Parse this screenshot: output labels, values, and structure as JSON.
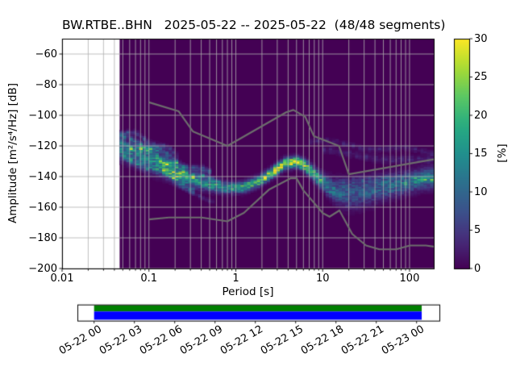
{
  "title": "BW.RTBE..BHN   2025-05-22 -- 2025-05-22  (48/48 segments)",
  "axes": {
    "xlabel": "Period [s]",
    "ylabel": "Amplitude [m²/s⁴/Hz] [dB]",
    "x_ticks": [
      {
        "label": "0.01",
        "value": 0.01
      },
      {
        "label": "0.1",
        "value": 0.1
      },
      {
        "label": "1",
        "value": 1
      },
      {
        "label": "10",
        "value": 10
      },
      {
        "label": "100",
        "value": 100
      }
    ],
    "y_ticks": [
      {
        "label": "−60",
        "value": -60
      },
      {
        "label": "−80",
        "value": -80
      },
      {
        "label": "−100",
        "value": -100
      },
      {
        "label": "−120",
        "value": -120
      },
      {
        "label": "−140",
        "value": -140
      },
      {
        "label": "−160",
        "value": -160
      },
      {
        "label": "−180",
        "value": -180
      },
      {
        "label": "−200",
        "value": -200
      }
    ]
  },
  "colorbar": {
    "label": "[%]",
    "min": 0,
    "max": 30,
    "colormap": "viridis",
    "ticks": [
      {
        "label": "0",
        "value": 0
      },
      {
        "label": "5",
        "value": 5
      },
      {
        "label": "10",
        "value": 10
      },
      {
        "label": "15",
        "value": 15
      },
      {
        "label": "20",
        "value": 20
      },
      {
        "label": "25",
        "value": 25
      },
      {
        "label": "30",
        "value": 30
      }
    ]
  },
  "timeline": {
    "axis_hours": [
      -1.25,
      25.7
    ],
    "tick_hours": [
      0,
      3,
      6,
      9,
      12,
      15,
      18,
      21,
      24
    ],
    "tick_labels": [
      "05-22 00",
      "05-22 03",
      "05-22 06",
      "05-22 09",
      "05-22 12",
      "05-22 15",
      "05-22 18",
      "05-22 21",
      "05-23 00"
    ],
    "bar_hours": [
      0,
      24.38
    ],
    "extent_color": "#008000",
    "coverage_color": "#0000ff"
  },
  "chart_data": {
    "type": "heatmap",
    "title": "BW.RTBE..BHN   2025-05-22 -- 2025-05-22  (48/48 segments)",
    "xlabel": "Period [s]",
    "ylabel": "Amplitude [m²/s⁴/Hz] [dB]",
    "x_scale": "log",
    "xlim": [
      0.01,
      190
    ],
    "ylim": [
      -200,
      -50
    ],
    "grid": true,
    "grid_color": "#b0b0b0",
    "background_color": "#440154",
    "data_start_period_s": 0.046,
    "period_step_octaves": 0.125,
    "db_bin_width": 1,
    "colorbar_label": "[%]",
    "colorbar_range": [
      0,
      30
    ],
    "mode_ridge": [
      [
        0.046,
        -122.5,
        13,
        4.0
      ],
      [
        0.07,
        -125,
        12,
        4.5
      ],
      [
        0.1,
        -128.5,
        13,
        5.0
      ],
      [
        0.14,
        -132,
        15,
        4.5
      ],
      [
        0.2,
        -137.5,
        24,
        3.5
      ],
      [
        0.3,
        -142,
        15,
        3.0
      ],
      [
        0.5,
        -145.5,
        15,
        2.6
      ],
      [
        0.8,
        -147.3,
        17,
        2.2
      ],
      [
        1.2,
        -147.0,
        19,
        2.2
      ],
      [
        1.8,
        -143.5,
        23,
        2.2
      ],
      [
        2.6,
        -137.5,
        27,
        2.2
      ],
      [
        3.6,
        -131.8,
        30,
        2.2
      ],
      [
        5.0,
        -130.2,
        30,
        2.2
      ],
      [
        6.5,
        -133.5,
        26,
        2.4
      ],
      [
        8.0,
        -138.5,
        21,
        2.8
      ],
      [
        10.0,
        -143.5,
        16,
        3.2
      ],
      [
        13.0,
        -148.5,
        12,
        4.2
      ],
      [
        18.0,
        -151.5,
        9,
        5.5
      ],
      [
        25.0,
        -151,
        8,
        6.0
      ],
      [
        35.0,
        -149,
        9,
        5.5
      ],
      [
        50.0,
        -147,
        10,
        5.0
      ],
      [
        70.0,
        -145,
        11,
        4.6
      ],
      [
        100.0,
        -143.5,
        12,
        4.2
      ],
      [
        140.0,
        -141.5,
        13,
        4.2
      ],
      [
        190.0,
        -140.5,
        13,
        4.2
      ]
    ],
    "faint_streaks": [
      {
        "range": [
          0.046,
          0.5
        ],
        "offset": 8,
        "amp": 8,
        "sigma": 1.3,
        "f": 14,
        "ph": 0.4
      },
      {
        "range": [
          0.046,
          0.65
        ],
        "offset": 4,
        "amp": 9,
        "sigma": 1.2,
        "f": 19,
        "ph": 2.1
      },
      {
        "range": [
          0.05,
          0.35
        ],
        "offset": -5,
        "amp": 7,
        "sigma": 1.4,
        "f": 11,
        "ph": 4.0
      },
      {
        "range": [
          0.046,
          0.22
        ],
        "offset": 12,
        "amp": 5,
        "sigma": 1.2,
        "f": 16,
        "ph": 1.2
      },
      {
        "range": [
          0.2,
          0.55
        ],
        "offset": -9,
        "amp": 3,
        "sigma": 1.0,
        "f": 9,
        "ph": 0.8
      },
      {
        "range": [
          7,
          190
        ],
        "abs": [
          [
            7,
            -117
          ],
          [
            190,
            -124.5
          ]
        ],
        "amp": 2.4,
        "sigma": 1.3,
        "f": 7,
        "ph": 0.3
      },
      {
        "range": [
          10,
          190
        ],
        "abs": [
          [
            10,
            -124
          ],
          [
            190,
            -130
          ]
        ],
        "amp": 2.8,
        "sigma": 1.6,
        "f": 5,
        "ph": 2.6
      },
      {
        "range": [
          80,
          190
        ],
        "offset": -1,
        "amp": 6,
        "sigma": 0.9,
        "f": 12,
        "ph": 1.9
      },
      {
        "range": [
          15,
          60
        ],
        "offset": 6,
        "amp": 3,
        "sigma": 2.0,
        "f": 8,
        "ph": 3.3
      }
    ],
    "noise_models": {
      "color": "#6d6d6d",
      "nhnm": [
        [
          0.1,
          -91.5
        ],
        [
          0.22,
          -97.4
        ],
        [
          0.32,
          -110.5
        ],
        [
          0.8,
          -120.0
        ],
        [
          3.8,
          -98.0
        ],
        [
          4.6,
          -96.5
        ],
        [
          6.3,
          -101.0
        ],
        [
          7.9,
          -113.5
        ],
        [
          15.4,
          -120.0
        ],
        [
          20.0,
          -138.5
        ],
        [
          354.8,
          -126.0
        ]
      ],
      "nlnm": [
        [
          0.1,
          -168.0
        ],
        [
          0.17,
          -166.7
        ],
        [
          0.4,
          -166.7
        ],
        [
          0.8,
          -169.2
        ],
        [
          1.24,
          -163.7
        ],
        [
          2.4,
          -148.6
        ],
        [
          4.3,
          -141.1
        ],
        [
          5.0,
          -141.1
        ],
        [
          6.0,
          -149.0
        ],
        [
          10.0,
          -163.8
        ],
        [
          12.0,
          -166.2
        ],
        [
          15.6,
          -162.1
        ],
        [
          21.9,
          -177.5
        ],
        [
          31.6,
          -185.0
        ],
        [
          45.0,
          -187.5
        ],
        [
          70.0,
          -187.5
        ],
        [
          101.0,
          -185.0
        ],
        [
          154.0,
          -185.0
        ],
        [
          328.0,
          -187.5
        ]
      ]
    }
  }
}
